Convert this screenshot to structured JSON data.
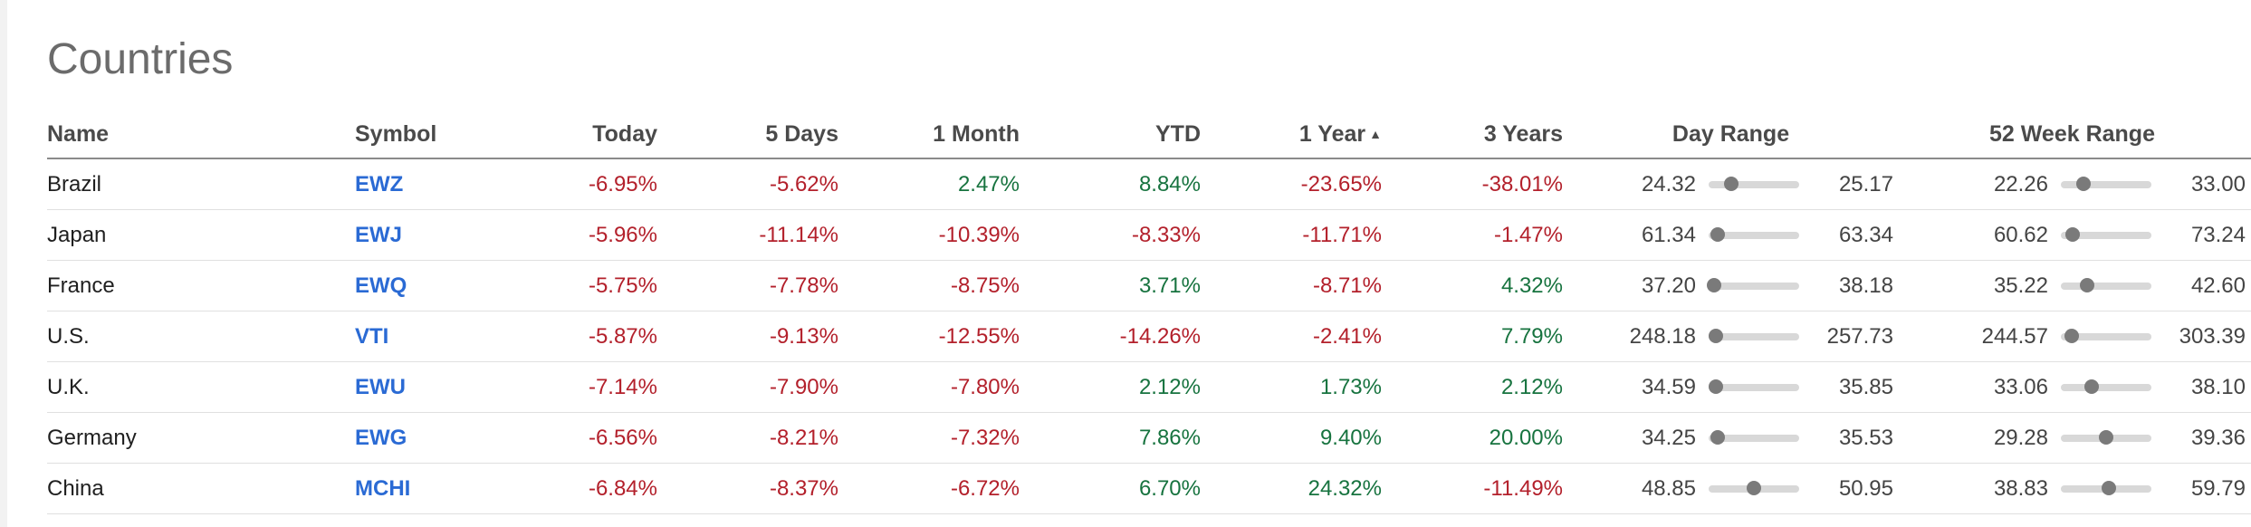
{
  "page": {
    "title": "Countries"
  },
  "columns": [
    "Name",
    "Symbol",
    "Today",
    "5 Days",
    "1 Month",
    "YTD",
    "1 Year",
    "3 Years",
    "Day Range",
    "52 Week Range"
  ],
  "sort": {
    "column": "1 Year",
    "direction": "ascending",
    "indicator": "▲"
  },
  "colors": {
    "negative": "#b3202b",
    "positive": "#17733f",
    "link": "#2a6ad4"
  },
  "rows": [
    {
      "name": "Brazil",
      "symbol": "EWZ",
      "today": "-6.95%",
      "d5": "-5.62%",
      "m1": "2.47%",
      "ytd": "8.84%",
      "y1": "-23.65%",
      "y3": "-38.01%",
      "day_low": "24.32",
      "day_high": "25.17",
      "day_pos": 0.25,
      "wk_low": "22.26",
      "wk_high": "33.00",
      "wk_pos": 0.25
    },
    {
      "name": "Japan",
      "symbol": "EWJ",
      "today": "-5.96%",
      "d5": "-11.14%",
      "m1": "-10.39%",
      "ytd": "-8.33%",
      "y1": "-11.71%",
      "y3": "-1.47%",
      "day_low": "61.34",
      "day_high": "63.34",
      "day_pos": 0.1,
      "wk_low": "60.62",
      "wk_high": "73.24",
      "wk_pos": 0.13
    },
    {
      "name": "France",
      "symbol": "EWQ",
      "today": "-5.75%",
      "d5": "-7.78%",
      "m1": "-8.75%",
      "ytd": "3.71%",
      "y1": "-8.71%",
      "y3": "4.32%",
      "day_low": "37.20",
      "day_high": "38.18",
      "day_pos": 0.06,
      "wk_low": "35.22",
      "wk_high": "42.60",
      "wk_pos": 0.29
    },
    {
      "name": "U.S.",
      "symbol": "VTI",
      "today": "-5.87%",
      "d5": "-9.13%",
      "m1": "-12.55%",
      "ytd": "-14.26%",
      "y1": "-2.41%",
      "y3": "7.79%",
      "day_low": "248.18",
      "day_high": "257.73",
      "day_pos": 0.08,
      "wk_low": "244.57",
      "wk_high": "303.39",
      "wk_pos": 0.12
    },
    {
      "name": "U.K.",
      "symbol": "EWU",
      "today": "-7.14%",
      "d5": "-7.90%",
      "m1": "-7.80%",
      "ytd": "2.12%",
      "y1": "1.73%",
      "y3": "2.12%",
      "day_low": "34.59",
      "day_high": "35.85",
      "day_pos": 0.08,
      "wk_low": "33.06",
      "wk_high": "38.10",
      "wk_pos": 0.34
    },
    {
      "name": "Germany",
      "symbol": "EWG",
      "today": "-6.56%",
      "d5": "-8.21%",
      "m1": "-7.32%",
      "ytd": "7.86%",
      "y1": "9.40%",
      "y3": "20.00%",
      "day_low": "34.25",
      "day_high": "35.53",
      "day_pos": 0.1,
      "wk_low": "29.28",
      "wk_high": "39.36",
      "wk_pos": 0.5
    },
    {
      "name": "China",
      "symbol": "MCHI",
      "today": "-6.84%",
      "d5": "-8.37%",
      "m1": "-6.72%",
      "ytd": "6.70%",
      "y1": "24.32%",
      "y3": "-11.49%",
      "day_low": "48.85",
      "day_high": "50.95",
      "day_pos": 0.5,
      "wk_low": "38.83",
      "wk_high": "59.79",
      "wk_pos": 0.53
    }
  ]
}
